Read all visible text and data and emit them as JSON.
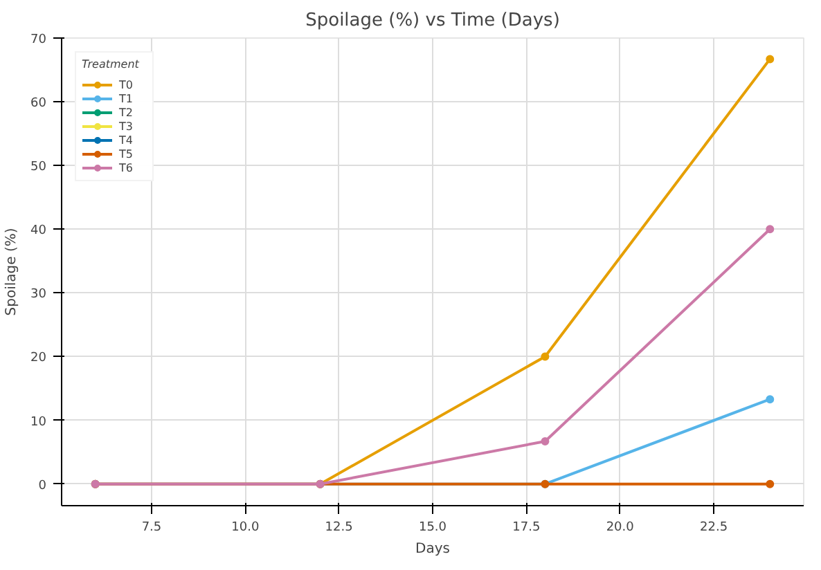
{
  "chart_data": {
    "type": "line",
    "title": "Spoilage (%) vs Time (Days)",
    "xlabel": "Days",
    "ylabel": "Spoilage (%)",
    "legend_title": "Treatment",
    "x": [
      6,
      12,
      18,
      24
    ],
    "series": [
      {
        "name": "T0",
        "color": "#e69f00",
        "values": [
          0,
          0,
          20,
          66.7
        ]
      },
      {
        "name": "T1",
        "color": "#56b4e9",
        "values": [
          0,
          0,
          0,
          13.3
        ]
      },
      {
        "name": "T2",
        "color": "#009e73",
        "values": [
          null,
          null,
          null,
          null
        ]
      },
      {
        "name": "T3",
        "color": "#f0e442",
        "values": [
          null,
          null,
          null,
          null
        ]
      },
      {
        "name": "T4",
        "color": "#0072b2",
        "values": [
          null,
          null,
          null,
          null
        ]
      },
      {
        "name": "T5",
        "color": "#d55e00",
        "values": [
          0,
          0,
          0,
          0
        ]
      },
      {
        "name": "T6",
        "color": "#cc79a7",
        "values": [
          0,
          0,
          6.7,
          40
        ]
      }
    ],
    "xlim": [
      5.1,
      24.9
    ],
    "ylim": [
      -3.4,
      70
    ],
    "xticks": [
      7.5,
      {
        "value": 10,
        "label": "10.0"
      },
      12.5,
      {
        "value": 15,
        "label": "15.0"
      },
      17.5,
      {
        "value": 20,
        "label": "20.0"
      },
      22.5
    ],
    "yticks": [
      0,
      10,
      20,
      30,
      40,
      50,
      60,
      70
    ],
    "grid": true,
    "legend": "top left",
    "marker": "circle",
    "line_style": "solid"
  }
}
